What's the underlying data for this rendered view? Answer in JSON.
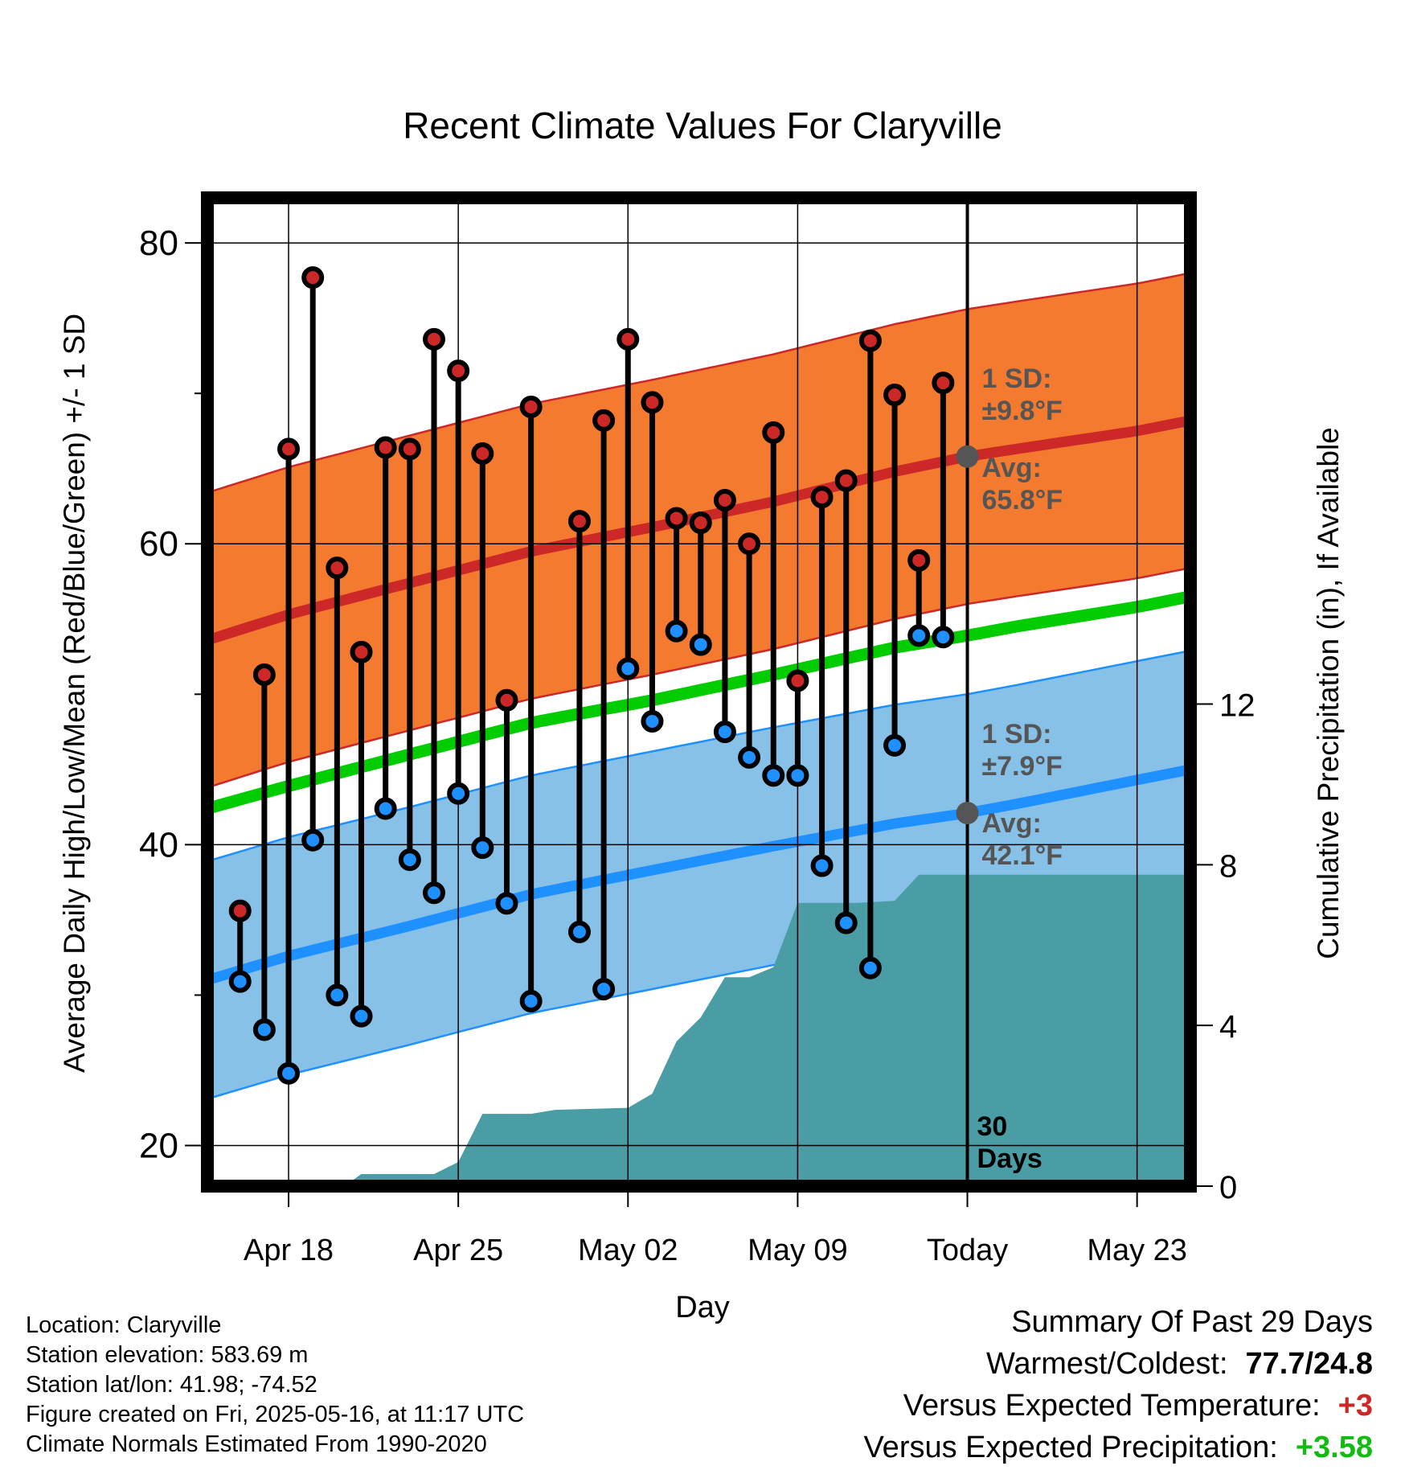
{
  "chart_data": {
    "type": "range-bars-with-bands",
    "title": "Recent Climate Values For Claryville",
    "xlabel": "Day",
    "ylabel": "Average Daily High/Low/Mean (Red/Blue/Green) +/- 1 SD",
    "y2label": "Cumulative Precipitation (in), If Available",
    "ylim": [
      17.3,
      83.0
    ],
    "y2lim": [
      0,
      24.6
    ],
    "yticks": [
      20,
      40,
      60,
      80
    ],
    "y2ticks": [
      0,
      4,
      8,
      12
    ],
    "xlim": [
      -3.35,
      37.2
    ],
    "x_ticks": [
      {
        "day": 0,
        "label": "Apr 18"
      },
      {
        "day": 7,
        "label": "Apr 25"
      },
      {
        "day": 14,
        "label": "May 02"
      },
      {
        "day": 21,
        "label": "May 09"
      },
      {
        "day": 28,
        "label": "Today"
      },
      {
        "day": 35,
        "label": "May 23"
      }
    ],
    "today_day": 28,
    "today_label": [
      "30",
      "Days"
    ],
    "daily": [
      {
        "day": -2,
        "high": 35.6,
        "low": 30.9
      },
      {
        "day": -1,
        "high": 51.3,
        "low": 27.7
      },
      {
        "day": 0,
        "high": 66.3,
        "low": 24.8
      },
      {
        "day": 1,
        "high": 77.7,
        "low": 40.3
      },
      {
        "day": 2,
        "high": 58.4,
        "low": 30.0
      },
      {
        "day": 3,
        "high": 52.8,
        "low": 28.6
      },
      {
        "day": 4,
        "high": 66.4,
        "low": 42.4
      },
      {
        "day": 5,
        "high": 66.3,
        "low": 39.0
      },
      {
        "day": 6,
        "high": 73.6,
        "low": 36.8
      },
      {
        "day": 7,
        "high": 71.5,
        "low": 43.4
      },
      {
        "day": 8,
        "high": 66.0,
        "low": 39.8
      },
      {
        "day": 9,
        "high": 49.6,
        "low": 36.1
      },
      {
        "day": 10,
        "high": 69.1,
        "low": 29.6
      },
      {
        "day": 12,
        "high": 61.5,
        "low": 34.2
      },
      {
        "day": 13,
        "high": 68.2,
        "low": 30.4
      },
      {
        "day": 14,
        "high": 73.6,
        "low": 51.7
      },
      {
        "day": 15,
        "high": 69.4,
        "low": 48.2
      },
      {
        "day": 16,
        "high": 61.7,
        "low": 54.2
      },
      {
        "day": 17,
        "high": 61.4,
        "low": 53.3
      },
      {
        "day": 18,
        "high": 62.9,
        "low": 47.5
      },
      {
        "day": 19,
        "high": 60.0,
        "low": 45.8
      },
      {
        "day": 20,
        "high": 67.4,
        "low": 44.6
      },
      {
        "day": 21,
        "high": 50.9,
        "low": 44.6
      },
      {
        "day": 22,
        "high": 63.1,
        "low": 38.6
      },
      {
        "day": 23,
        "high": 64.2,
        "low": 34.8
      },
      {
        "day": 24,
        "high": 73.5,
        "low": 31.8
      },
      {
        "day": 25,
        "high": 69.9,
        "low": 46.6
      },
      {
        "day": 26,
        "high": 58.9,
        "low": 53.9
      },
      {
        "day": 27,
        "high": 70.7,
        "low": 53.8
      }
    ],
    "normals_days": [
      -3.35,
      0,
      5,
      10,
      15,
      20,
      25,
      28,
      30,
      35,
      37.2
    ],
    "normal_high": [
      53.6,
      55.3,
      57.4,
      59.5,
      61.1,
      62.8,
      64.8,
      65.8,
      66.3,
      67.5,
      68.2
    ],
    "normal_high_sd": 9.8,
    "normal_low": [
      31.0,
      32.6,
      34.6,
      36.7,
      38.3,
      39.9,
      41.4,
      42.1,
      42.7,
      44.3,
      45.0
    ],
    "normal_low_sd": 7.9,
    "normal_mean": [
      42.4,
      43.9,
      46.0,
      48.1,
      49.6,
      51.3,
      53.1,
      53.9,
      54.5,
      55.8,
      56.5
    ],
    "annotations": {
      "high_sd": [
        "1 SD:",
        "±9.8°F"
      ],
      "high_avg": [
        "Avg:",
        "65.8°F"
      ],
      "low_sd": [
        "1 SD:",
        "±7.9°F"
      ],
      "low_avg": [
        "Avg:",
        "42.1°F"
      ]
    },
    "precip_cumulative": [
      {
        "day": -3.35,
        "value": 0
      },
      {
        "day": 2.3,
        "value": 0
      },
      {
        "day": 3,
        "value": 0.3
      },
      {
        "day": 6,
        "value": 0.3
      },
      {
        "day": 7,
        "value": 0.6
      },
      {
        "day": 8,
        "value": 1.8
      },
      {
        "day": 10,
        "value": 1.8
      },
      {
        "day": 11,
        "value": 1.9
      },
      {
        "day": 14,
        "value": 1.95
      },
      {
        "day": 15,
        "value": 2.3
      },
      {
        "day": 16,
        "value": 3.6
      },
      {
        "day": 17,
        "value": 4.2
      },
      {
        "day": 18,
        "value": 5.2
      },
      {
        "day": 19,
        "value": 5.2
      },
      {
        "day": 20,
        "value": 5.45
      },
      {
        "day": 21,
        "value": 7.05
      },
      {
        "day": 23.5,
        "value": 7.05
      },
      {
        "day": 25,
        "value": 7.1
      },
      {
        "day": 26,
        "value": 7.75
      },
      {
        "day": 37.2,
        "value": 7.75
      }
    ],
    "colors": {
      "high": "#cc2828",
      "high_band": "#f37a2e",
      "low": "#1e90ff",
      "low_band": "#87c1e8",
      "mean": "#00cc00",
      "precip": "#4a9ca5",
      "annotation": "#555555"
    }
  },
  "info": {
    "location": "Location: Claryville",
    "elevation": "Station elevation: 583.69 m",
    "latlon": "Station lat/lon: 41.98; -74.52",
    "created": "Figure created on Fri, 2025-05-16, at 11:17 UTC",
    "normals": "Climate Normals Estimated From 1990-2020"
  },
  "summary": {
    "title": "Summary Of Past 29 Days",
    "warm_cold_label": "Warmest/Coldest:",
    "warm_cold_value": "77.7/24.8",
    "temp_label": "Versus Expected Temperature:",
    "temp_value": "+3",
    "precip_label": "Versus Expected Precipitation:",
    "precip_value": "+3.58",
    "temp_color": "#cc2828",
    "precip_color": "#11bb11"
  }
}
